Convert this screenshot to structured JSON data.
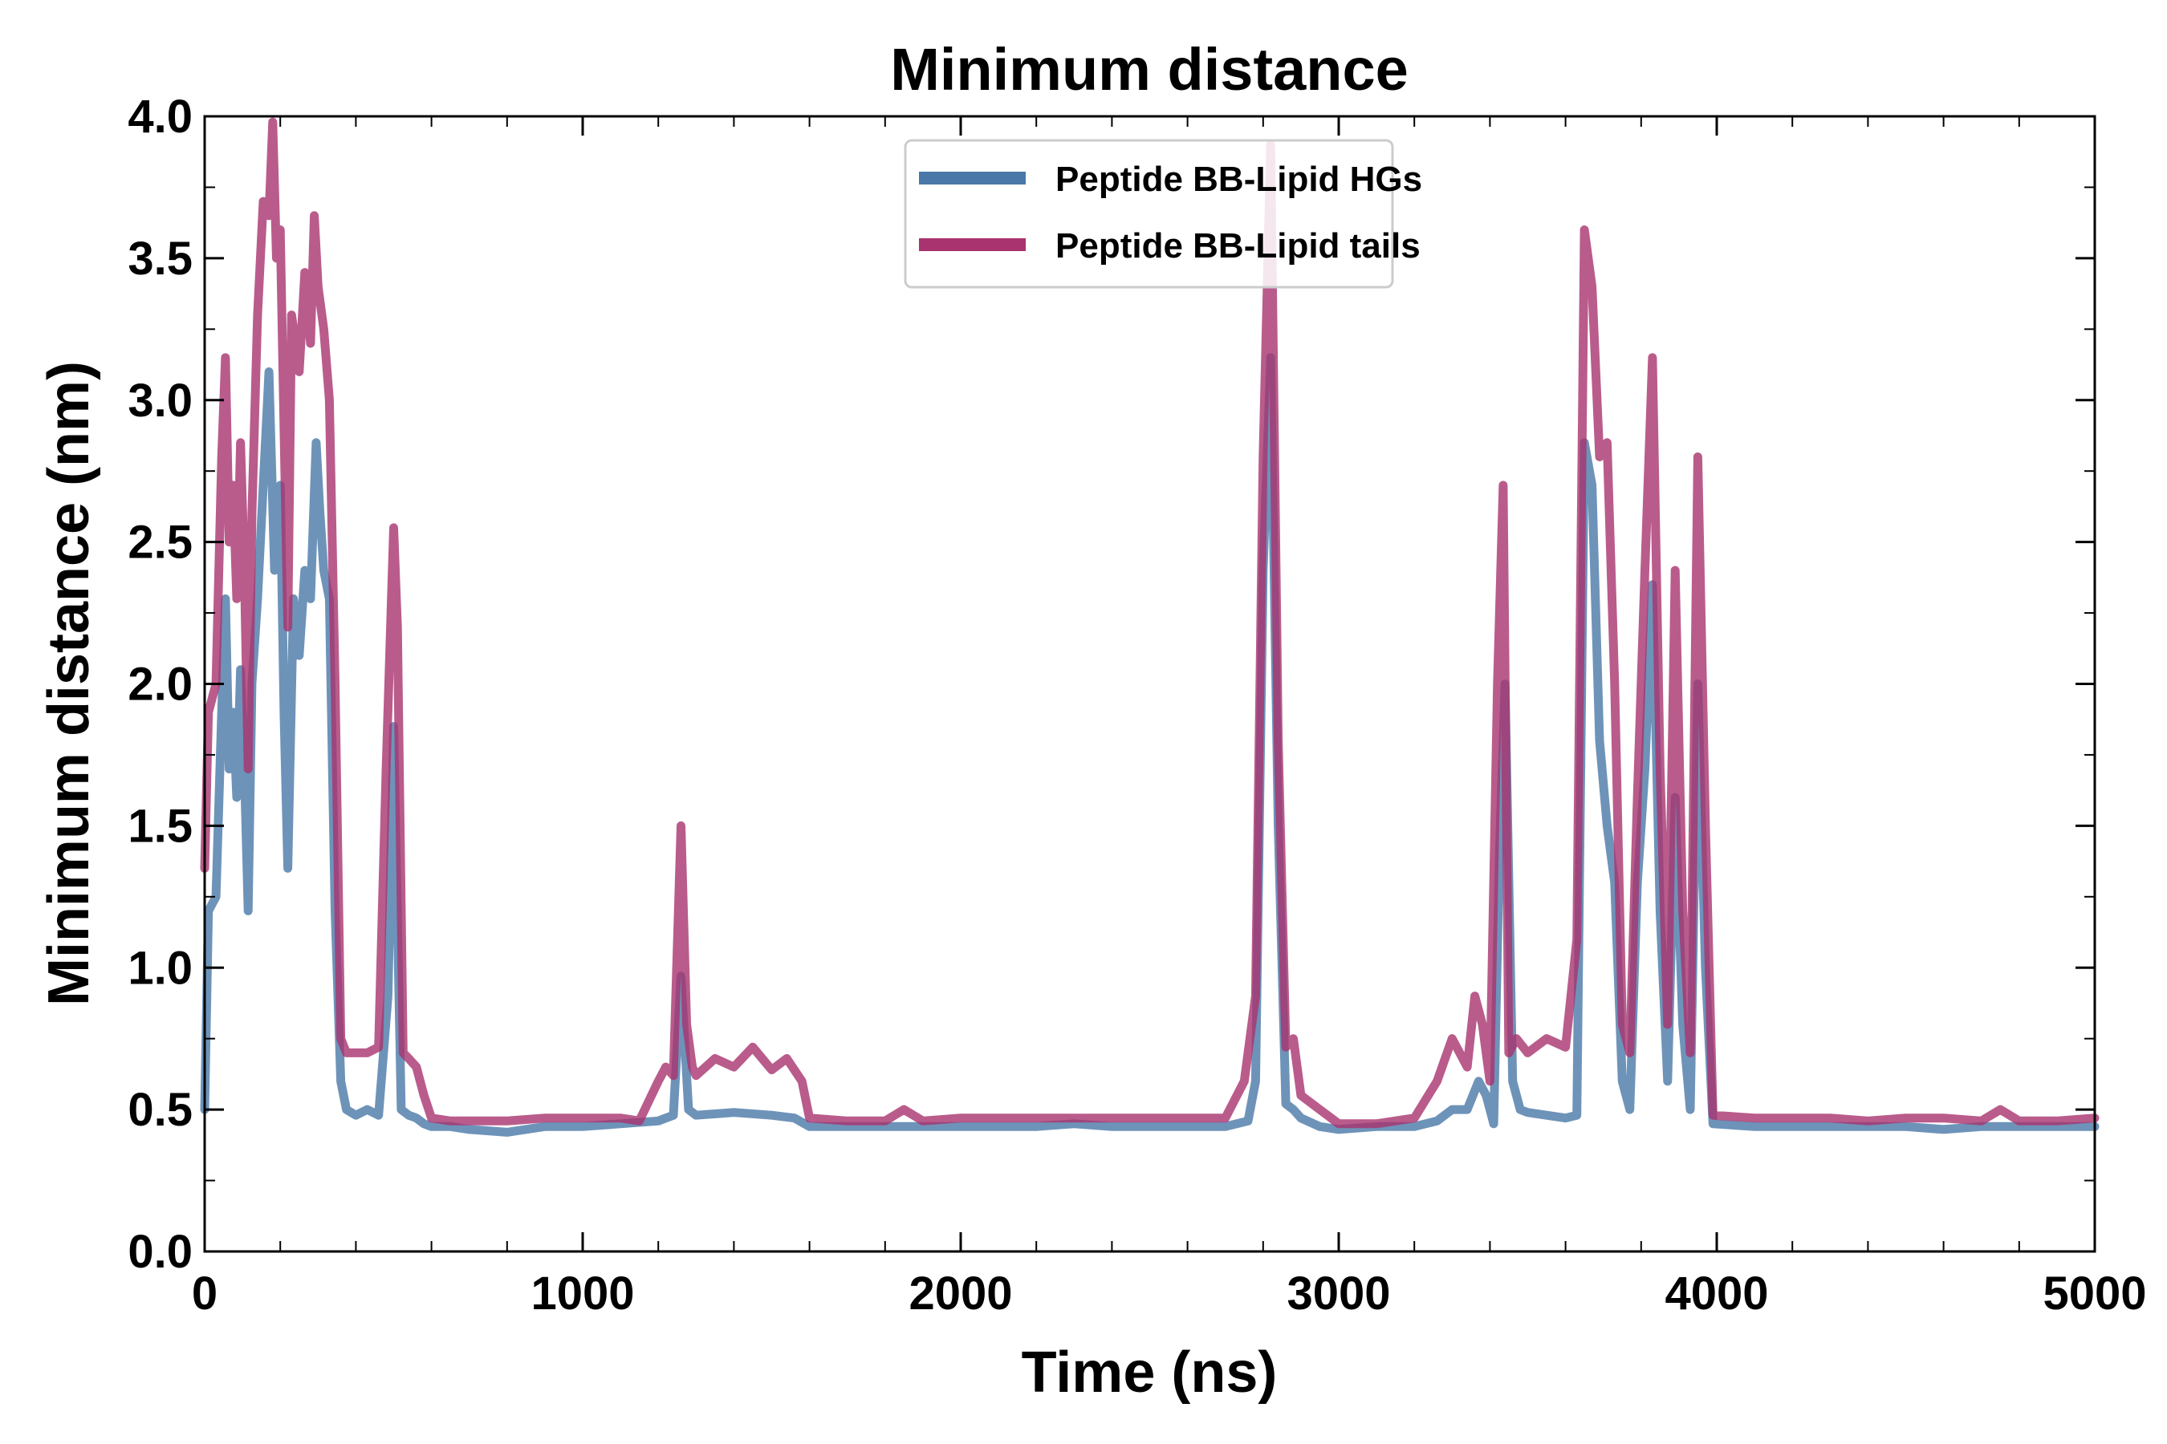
{
  "chart_data": {
    "type": "line",
    "title": "Minimum distance",
    "xlabel": "Time (ns)",
    "ylabel": "Minimum distance (nm)",
    "xlim": [
      0,
      5000
    ],
    "ylim": [
      0,
      4.0
    ],
    "xticks": [
      "0",
      "1000",
      "2000",
      "3000",
      "4000",
      "5000"
    ],
    "yticks": [
      "0.0",
      "0.5",
      "1.0",
      "1.5",
      "2.0",
      "2.5",
      "3.0",
      "3.5",
      "4.0"
    ],
    "grid": false,
    "legend": "top-center",
    "series": [
      {
        "name": "Peptide BB-Lipid HGs",
        "color": "#4a78a8",
        "points": [
          [
            0,
            0.5
          ],
          [
            10,
            1.2
          ],
          [
            30,
            1.25
          ],
          [
            45,
            1.9
          ],
          [
            55,
            2.3
          ],
          [
            65,
            1.7
          ],
          [
            75,
            1.9
          ],
          [
            85,
            1.6
          ],
          [
            95,
            2.05
          ],
          [
            105,
            1.7
          ],
          [
            115,
            1.2
          ],
          [
            125,
            2.0
          ],
          [
            140,
            2.3
          ],
          [
            155,
            2.7
          ],
          [
            170,
            3.1
          ],
          [
            185,
            2.4
          ],
          [
            200,
            2.7
          ],
          [
            210,
            1.9
          ],
          [
            220,
            1.35
          ],
          [
            235,
            2.3
          ],
          [
            250,
            2.1
          ],
          [
            265,
            2.4
          ],
          [
            280,
            2.3
          ],
          [
            295,
            2.85
          ],
          [
            305,
            2.6
          ],
          [
            315,
            2.4
          ],
          [
            330,
            2.3
          ],
          [
            345,
            1.2
          ],
          [
            360,
            0.6
          ],
          [
            375,
            0.5
          ],
          [
            400,
            0.48
          ],
          [
            430,
            0.5
          ],
          [
            460,
            0.48
          ],
          [
            485,
            0.9
          ],
          [
            500,
            1.85
          ],
          [
            520,
            0.5
          ],
          [
            540,
            0.48
          ],
          [
            560,
            0.47
          ],
          [
            580,
            0.45
          ],
          [
            600,
            0.44
          ],
          [
            650,
            0.44
          ],
          [
            700,
            0.43
          ],
          [
            800,
            0.42
          ],
          [
            900,
            0.44
          ],
          [
            1000,
            0.44
          ],
          [
            1100,
            0.45
          ],
          [
            1200,
            0.46
          ],
          [
            1240,
            0.48
          ],
          [
            1260,
            0.97
          ],
          [
            1280,
            0.5
          ],
          [
            1300,
            0.48
          ],
          [
            1400,
            0.49
          ],
          [
            1500,
            0.48
          ],
          [
            1560,
            0.47
          ],
          [
            1600,
            0.44
          ],
          [
            1700,
            0.44
          ],
          [
            1800,
            0.44
          ],
          [
            1900,
            0.44
          ],
          [
            2000,
            0.44
          ],
          [
            2100,
            0.44
          ],
          [
            2200,
            0.44
          ],
          [
            2300,
            0.45
          ],
          [
            2400,
            0.44
          ],
          [
            2500,
            0.44
          ],
          [
            2600,
            0.44
          ],
          [
            2700,
            0.44
          ],
          [
            2760,
            0.46
          ],
          [
            2780,
            0.6
          ],
          [
            2800,
            2.4
          ],
          [
            2820,
            3.15
          ],
          [
            2840,
            1.5
          ],
          [
            2860,
            0.52
          ],
          [
            2880,
            0.5
          ],
          [
            2900,
            0.47
          ],
          [
            2950,
            0.44
          ],
          [
            3000,
            0.43
          ],
          [
            3100,
            0.44
          ],
          [
            3200,
            0.44
          ],
          [
            3260,
            0.46
          ],
          [
            3300,
            0.5
          ],
          [
            3340,
            0.5
          ],
          [
            3370,
            0.6
          ],
          [
            3390,
            0.55
          ],
          [
            3410,
            0.45
          ],
          [
            3425,
            1.4
          ],
          [
            3440,
            2.0
          ],
          [
            3460,
            0.6
          ],
          [
            3480,
            0.5
          ],
          [
            3500,
            0.49
          ],
          [
            3550,
            0.48
          ],
          [
            3600,
            0.47
          ],
          [
            3630,
            0.48
          ],
          [
            3650,
            2.85
          ],
          [
            3670,
            2.7
          ],
          [
            3690,
            1.8
          ],
          [
            3710,
            1.5
          ],
          [
            3730,
            1.3
          ],
          [
            3750,
            0.6
          ],
          [
            3770,
            0.5
          ],
          [
            3790,
            1.3
          ],
          [
            3810,
            1.7
          ],
          [
            3830,
            2.35
          ],
          [
            3850,
            1.2
          ],
          [
            3870,
            0.6
          ],
          [
            3890,
            1.6
          ],
          [
            3910,
            0.8
          ],
          [
            3930,
            0.5
          ],
          [
            3950,
            2.0
          ],
          [
            3970,
            1.0
          ],
          [
            3990,
            0.45
          ],
          [
            4100,
            0.44
          ],
          [
            4200,
            0.44
          ],
          [
            4300,
            0.44
          ],
          [
            4400,
            0.44
          ],
          [
            4500,
            0.44
          ],
          [
            4600,
            0.43
          ],
          [
            4700,
            0.44
          ],
          [
            4800,
            0.44
          ],
          [
            4900,
            0.44
          ],
          [
            5000,
            0.44
          ]
        ]
      },
      {
        "name": "Peptide BB-Lipid tails",
        "color": "#a8336e",
        "points": [
          [
            0,
            1.35
          ],
          [
            10,
            1.9
          ],
          [
            30,
            2.0
          ],
          [
            45,
            2.8
          ],
          [
            55,
            3.15
          ],
          [
            65,
            2.5
          ],
          [
            75,
            2.7
          ],
          [
            85,
            2.3
          ],
          [
            95,
            2.85
          ],
          [
            105,
            2.4
          ],
          [
            115,
            1.7
          ],
          [
            125,
            2.6
          ],
          [
            140,
            3.3
          ],
          [
            155,
            3.7
          ],
          [
            170,
            3.65
          ],
          [
            180,
            3.98
          ],
          [
            190,
            3.5
          ],
          [
            200,
            3.6
          ],
          [
            210,
            2.9
          ],
          [
            220,
            2.2
          ],
          [
            230,
            3.3
          ],
          [
            250,
            3.1
          ],
          [
            265,
            3.45
          ],
          [
            280,
            3.2
          ],
          [
            290,
            3.65
          ],
          [
            300,
            3.4
          ],
          [
            315,
            3.25
          ],
          [
            330,
            3.0
          ],
          [
            345,
            2.0
          ],
          [
            360,
            0.75
          ],
          [
            375,
            0.7
          ],
          [
            400,
            0.7
          ],
          [
            430,
            0.7
          ],
          [
            460,
            0.72
          ],
          [
            480,
            1.7
          ],
          [
            500,
            2.55
          ],
          [
            510,
            2.2
          ],
          [
            525,
            0.7
          ],
          [
            540,
            0.68
          ],
          [
            560,
            0.65
          ],
          [
            580,
            0.55
          ],
          [
            600,
            0.47
          ],
          [
            650,
            0.46
          ],
          [
            700,
            0.46
          ],
          [
            800,
            0.46
          ],
          [
            900,
            0.47
          ],
          [
            1000,
            0.47
          ],
          [
            1100,
            0.47
          ],
          [
            1150,
            0.46
          ],
          [
            1200,
            0.6
          ],
          [
            1220,
            0.65
          ],
          [
            1240,
            0.62
          ],
          [
            1260,
            1.5
          ],
          [
            1275,
            0.8
          ],
          [
            1290,
            0.65
          ],
          [
            1300,
            0.62
          ],
          [
            1350,
            0.68
          ],
          [
            1400,
            0.65
          ],
          [
            1450,
            0.72
          ],
          [
            1500,
            0.64
          ],
          [
            1540,
            0.68
          ],
          [
            1580,
            0.6
          ],
          [
            1600,
            0.47
          ],
          [
            1700,
            0.46
          ],
          [
            1800,
            0.46
          ],
          [
            1850,
            0.5
          ],
          [
            1900,
            0.46
          ],
          [
            2000,
            0.47
          ],
          [
            2100,
            0.47
          ],
          [
            2200,
            0.47
          ],
          [
            2300,
            0.47
          ],
          [
            2400,
            0.47
          ],
          [
            2500,
            0.47
          ],
          [
            2600,
            0.47
          ],
          [
            2700,
            0.47
          ],
          [
            2750,
            0.6
          ],
          [
            2780,
            0.9
          ],
          [
            2800,
            2.8
          ],
          [
            2820,
            3.9
          ],
          [
            2840,
            1.8
          ],
          [
            2860,
            0.72
          ],
          [
            2880,
            0.75
          ],
          [
            2900,
            0.55
          ],
          [
            2950,
            0.5
          ],
          [
            3000,
            0.45
          ],
          [
            3100,
            0.45
          ],
          [
            3200,
            0.47
          ],
          [
            3260,
            0.6
          ],
          [
            3300,
            0.75
          ],
          [
            3340,
            0.65
          ],
          [
            3360,
            0.9
          ],
          [
            3380,
            0.8
          ],
          [
            3400,
            0.6
          ],
          [
            3420,
            2.0
          ],
          [
            3435,
            2.7
          ],
          [
            3450,
            0.7
          ],
          [
            3470,
            0.75
          ],
          [
            3500,
            0.7
          ],
          [
            3550,
            0.75
          ],
          [
            3600,
            0.72
          ],
          [
            3630,
            1.1
          ],
          [
            3650,
            3.6
          ],
          [
            3670,
            3.4
          ],
          [
            3690,
            2.8
          ],
          [
            3710,
            2.85
          ],
          [
            3730,
            2.0
          ],
          [
            3750,
            0.8
          ],
          [
            3770,
            0.7
          ],
          [
            3790,
            1.6
          ],
          [
            3810,
            2.4
          ],
          [
            3830,
            3.15
          ],
          [
            3850,
            1.7
          ],
          [
            3870,
            0.8
          ],
          [
            3890,
            2.4
          ],
          [
            3910,
            1.2
          ],
          [
            3930,
            0.7
          ],
          [
            3950,
            2.8
          ],
          [
            3970,
            1.5
          ],
          [
            3990,
            0.48
          ],
          [
            4100,
            0.47
          ],
          [
            4200,
            0.47
          ],
          [
            4300,
            0.47
          ],
          [
            4400,
            0.46
          ],
          [
            4500,
            0.47
          ],
          [
            4600,
            0.47
          ],
          [
            4700,
            0.46
          ],
          [
            4750,
            0.5
          ],
          [
            4800,
            0.46
          ],
          [
            4900,
            0.46
          ],
          [
            5000,
            0.47
          ]
        ]
      }
    ]
  }
}
